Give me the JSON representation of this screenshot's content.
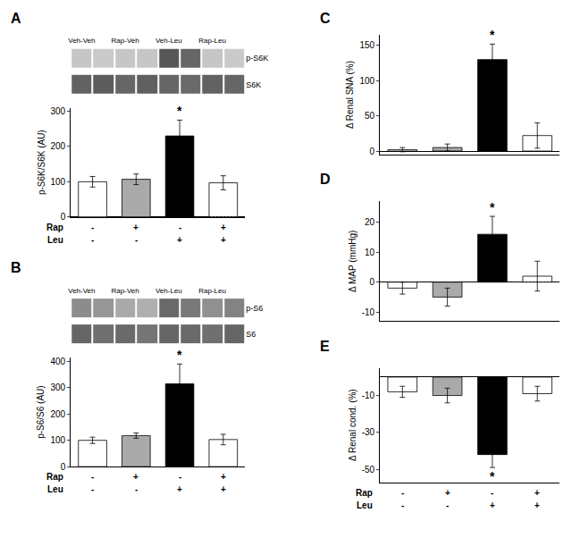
{
  "chart_data": [
    {
      "type": "heatmap",
      "title": "A",
      "categories": [
        "Veh-Veh",
        null,
        "Rap-Veh",
        null,
        "Veh-Leu",
        null,
        "Rap-Leu",
        null
      ],
      "rows": [
        "p-S6K",
        "S6K"
      ],
      "cells": [
        [
          0.3,
          0.28,
          0.3,
          0.3,
          0.88,
          0.8,
          0.3,
          0.28
        ],
        [
          0.82,
          0.85,
          0.8,
          0.83,
          0.8,
          0.78,
          0.82,
          0.8
        ]
      ],
      "zlim": [
        0,
        1
      ]
    },
    {
      "type": "bar",
      "categories": [
        [
          "-",
          "-"
        ],
        [
          "+",
          "-"
        ],
        [
          "-",
          "+"
        ],
        [
          "+",
          "+"
        ]
      ],
      "category_names": [
        "Rap",
        "Leu"
      ],
      "values": [
        100,
        107,
        230,
        97
      ],
      "errors": [
        15,
        15,
        45,
        20
      ],
      "colors": [
        "#ffffff",
        "#aaaaaa",
        "#000000",
        "#ffffff"
      ],
      "ylabel": "p-S6K/S6K (AU)",
      "ylim": [
        0,
        310
      ],
      "yticks": [
        0,
        100,
        200,
        300
      ],
      "grid": false,
      "annotations": [
        {
          "text": "*",
          "index": 2
        }
      ]
    },
    {
      "type": "heatmap",
      "title": "B",
      "categories": [
        "Veh-Veh",
        null,
        "Rap-Veh",
        null,
        "Veh-Leu",
        null,
        "Rap-Leu",
        null
      ],
      "rows": [
        "p-S6",
        "S6"
      ],
      "cells": [
        [
          0.6,
          0.55,
          0.45,
          0.42,
          0.78,
          0.7,
          0.58,
          0.65
        ],
        [
          0.8,
          0.75,
          0.78,
          0.72,
          0.8,
          0.78,
          0.75,
          0.8
        ]
      ],
      "zlim": [
        0,
        1
      ]
    },
    {
      "type": "bar",
      "categories": [
        [
          "-",
          "-"
        ],
        [
          "+",
          "-"
        ],
        [
          "-",
          "+"
        ],
        [
          "+",
          "+"
        ]
      ],
      "category_names": [
        "Rap",
        "Leu"
      ],
      "values": [
        100,
        118,
        315,
        103
      ],
      "errors": [
        12,
        10,
        75,
        20
      ],
      "colors": [
        "#ffffff",
        "#aaaaaa",
        "#000000",
        "#ffffff"
      ],
      "ylabel": "p-S6/S6 (AU)",
      "ylim": [
        0,
        415
      ],
      "yticks": [
        0,
        100,
        200,
        300,
        400
      ],
      "grid": false,
      "annotations": [
        {
          "text": "*",
          "index": 2
        }
      ]
    },
    {
      "type": "bar",
      "title": "C",
      "categories": [
        null,
        null,
        null,
        null
      ],
      "values": [
        2,
        5,
        130,
        22
      ],
      "errors": [
        3,
        5,
        22,
        18
      ],
      "colors": [
        "#ffffff",
        "#aaaaaa",
        "#000000",
        "#ffffff"
      ],
      "ylabel": "Δ Renal SNA (%)",
      "ylim": [
        -5,
        165
      ],
      "yticks": [
        0,
        50,
        100,
        150
      ],
      "grid": false,
      "annotations": [
        {
          "text": "*",
          "index": 2
        }
      ]
    },
    {
      "type": "bar",
      "title": "D",
      "categories": [
        null,
        null,
        null,
        null
      ],
      "values": [
        -2,
        -5,
        16,
        2
      ],
      "errors": [
        2,
        3,
        6,
        5
      ],
      "colors": [
        "#ffffff",
        "#aaaaaa",
        "#000000",
        "#ffffff"
      ],
      "ylabel": "Δ MAP (mmHg)",
      "ylim": [
        -13,
        27
      ],
      "yticks": [
        -10,
        0,
        10,
        20
      ],
      "grid": false,
      "annotations": [
        {
          "text": "*",
          "index": 2
        }
      ]
    },
    {
      "type": "bar",
      "title": "E",
      "categories": [
        [
          "-",
          "-"
        ],
        [
          "+",
          "-"
        ],
        [
          "-",
          "+"
        ],
        [
          "+",
          "+"
        ]
      ],
      "category_names": [
        "Rap",
        "Leu"
      ],
      "values": [
        -8,
        -10,
        -42,
        -9
      ],
      "errors": [
        3,
        4,
        7,
        4
      ],
      "colors": [
        "#ffffff",
        "#aaaaaa",
        "#000000",
        "#ffffff"
      ],
      "ylabel": "Δ Renal cond. (%)",
      "ylim": [
        -57,
        5
      ],
      "yticks": [
        -50,
        -30,
        -10
      ],
      "grid": false,
      "annotations": [
        {
          "text": "*",
          "index": 2
        }
      ]
    }
  ]
}
